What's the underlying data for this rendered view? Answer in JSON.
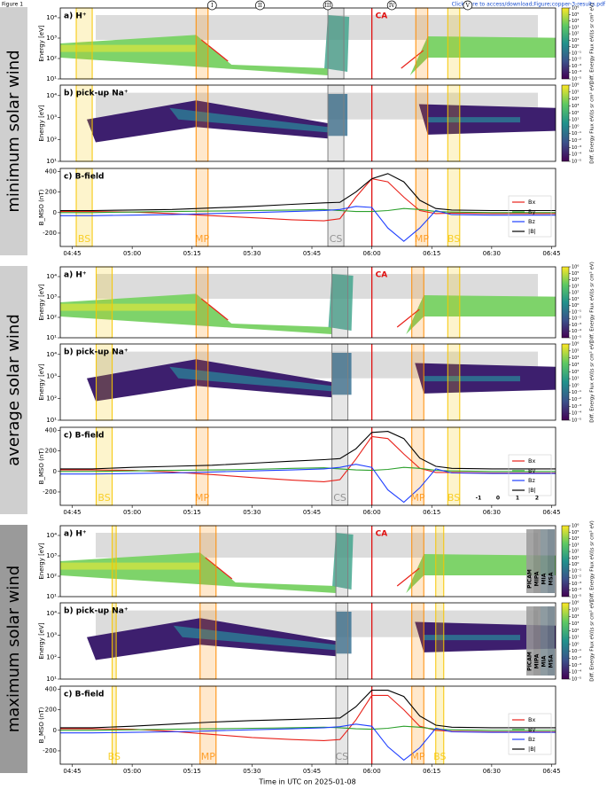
{
  "header": {
    "figure": "Figure 1",
    "link": "Click here to access/download;Figure;copper-3-results.pdf"
  },
  "time_axis": {
    "xlim": [
      "04:42",
      "06:46"
    ],
    "xticks": [
      "04:45",
      "05:00",
      "05:15",
      "05:30",
      "05:45",
      "06:00",
      "06:15",
      "06:30",
      "06:45"
    ],
    "label": "Time in UTC on 2025-01-08"
  },
  "roman": [
    {
      "time": "05:20",
      "label": "I"
    },
    {
      "time": "05:32",
      "label": "II"
    },
    {
      "time": "05:49",
      "label": "III"
    },
    {
      "time": "06:05",
      "label": "IV"
    },
    {
      "time": "06:24",
      "label": "V"
    }
  ],
  "energy_axis": {
    "ylabel": "Energy [eV]",
    "log": true,
    "ylim": [
      10,
      30000
    ],
    "yticks": [
      {
        "value": 10,
        "label": "10¹"
      },
      {
        "value": 100,
        "label": "10²"
      },
      {
        "value": 1000,
        "label": "10³"
      },
      {
        "value": 10000,
        "label": "10⁴"
      }
    ]
  },
  "colorbar": {
    "label": "Diff. Energy Flux eV/(s sr cm² eV)",
    "log": true,
    "lim": [
      1e-05,
      1000000
    ],
    "ticks": [
      {
        "value": 1000000,
        "label": "10⁶"
      },
      {
        "value": 100000,
        "label": "10⁵"
      },
      {
        "value": 10000,
        "label": "10⁴"
      },
      {
        "value": 1000,
        "label": "10³"
      },
      {
        "value": 100,
        "label": "10²"
      },
      {
        "value": 10,
        "label": "10¹"
      },
      {
        "value": 1,
        "label": "10⁰"
      },
      {
        "value": 0.1,
        "label": "10⁻¹"
      },
      {
        "value": 0.01,
        "label": "10⁻²"
      },
      {
        "value": 0.001,
        "label": "10⁻³"
      },
      {
        "value": 0.0001,
        "label": "10⁻⁴"
      },
      {
        "value": 1e-05,
        "label": "10⁻⁵"
      }
    ]
  },
  "bfield_axis": {
    "ylabel": "B_MSO (nT)",
    "ylim": [
      -330,
      430
    ],
    "yticks": [
      -200,
      0,
      200,
      400
    ],
    "x": [
      "04:42",
      "04:50",
      "05:00",
      "05:10",
      "05:20",
      "05:30",
      "05:40",
      "05:48",
      "05:52",
      "05:56",
      "06:00",
      "06:04",
      "06:08",
      "06:12",
      "06:16",
      "06:20",
      "06:30",
      "06:46"
    ]
  },
  "groups": [
    {
      "title": "minimum solar wind",
      "h_label": "a) H⁺",
      "na_label": "b) pick-up Na⁺",
      "b_label": "c) B-field",
      "ca": {
        "time": "06:00",
        "label": "CA"
      },
      "boundaries": [
        {
          "label": "BS",
          "start": "04:46",
          "end": "04:50",
          "color": "#f7c600"
        },
        {
          "label": "MP",
          "start": "05:16",
          "end": "05:19",
          "color": "#ff8c00"
        },
        {
          "label": "CS",
          "start": "05:49",
          "end": "05:53",
          "color": "#808080"
        },
        {
          "label": "MP",
          "start": "06:11",
          "end": "06:14",
          "color": "#ff8c00"
        },
        {
          "label": "BS",
          "start": "06:19",
          "end": "06:22",
          "color": "#f7c600"
        }
      ],
      "series": [
        {
          "name": "Bx",
          "color": "#e8211a",
          "values": [
            10,
            10,
            5,
            -10,
            -30,
            -50,
            -70,
            -80,
            -60,
            150,
            330,
            300,
            150,
            20,
            -10,
            -5,
            -10,
            -10
          ]
        },
        {
          "name": "By",
          "color": "#2ca02c",
          "values": [
            0,
            0,
            5,
            10,
            15,
            20,
            25,
            30,
            20,
            10,
            10,
            20,
            40,
            30,
            10,
            5,
            0,
            0
          ]
        },
        {
          "name": "Bz",
          "color": "#1f3fff",
          "values": [
            -30,
            -30,
            -25,
            -20,
            -10,
            0,
            10,
            20,
            30,
            60,
            50,
            -150,
            -280,
            -150,
            20,
            -20,
            -25,
            -25
          ]
        },
        {
          "name": "|B|",
          "color": "#000000",
          "values": [
            20,
            20,
            25,
            30,
            45,
            60,
            80,
            95,
            100,
            200,
            330,
            380,
            300,
            120,
            40,
            25,
            20,
            20
          ]
        }
      ]
    },
    {
      "title": "average solar wind",
      "h_label": "a) H⁺",
      "na_label": "b) pick-up Na⁺",
      "b_label": "c) B-field",
      "ca": {
        "time": "06:00",
        "label": "CA"
      },
      "boundaries": [
        {
          "label": "BS",
          "start": "04:51",
          "end": "04:55",
          "color": "#f7c600"
        },
        {
          "label": "MP",
          "start": "05:16",
          "end": "05:19",
          "color": "#ff8c00"
        },
        {
          "label": "CS",
          "start": "05:50",
          "end": "05:54",
          "color": "#808080"
        },
        {
          "label": "MP",
          "start": "06:10",
          "end": "06:13",
          "color": "#ff8c00"
        },
        {
          "label": "BS",
          "start": "06:19",
          "end": "06:22",
          "color": "#f7c600"
        }
      ],
      "extra_labels": [
        "-1",
        "0",
        "1",
        "2"
      ],
      "series": [
        {
          "name": "Bx",
          "color": "#e8211a",
          "values": [
            15,
            15,
            10,
            -5,
            -30,
            -60,
            -85,
            -100,
            -80,
            120,
            340,
            320,
            170,
            30,
            -10,
            -10,
            -15,
            -15
          ]
        },
        {
          "name": "By",
          "color": "#2ca02c",
          "values": [
            0,
            0,
            5,
            10,
            15,
            20,
            30,
            35,
            25,
            15,
            10,
            20,
            40,
            30,
            10,
            5,
            0,
            0
          ]
        },
        {
          "name": "Bz",
          "color": "#1f3fff",
          "values": [
            -25,
            -25,
            -20,
            -15,
            -5,
            5,
            15,
            25,
            40,
            70,
            40,
            -180,
            -300,
            -160,
            25,
            -15,
            -20,
            -20
          ]
        },
        {
          "name": "|B|",
          "color": "#000000",
          "values": [
            25,
            25,
            40,
            50,
            60,
            80,
            100,
            115,
            125,
            220,
            380,
            390,
            320,
            130,
            50,
            30,
            25,
            25
          ]
        }
      ]
    },
    {
      "title": "maximum solar wind",
      "h_label": "a) H⁺",
      "na_label": "b) pick-up Na⁺",
      "b_label": "c) B-field",
      "ca": {
        "time": "06:00",
        "label": "CA"
      },
      "boundaries": [
        {
          "label": "BS",
          "start": "04:55",
          "end": "04:56",
          "color": "#f7c600"
        },
        {
          "label": "MP",
          "start": "05:17",
          "end": "05:21",
          "color": "#ff8c00"
        },
        {
          "label": "CS",
          "start": "05:51",
          "end": "05:54",
          "color": "#808080"
        },
        {
          "label": "MP",
          "start": "06:10",
          "end": "06:13",
          "color": "#ff8c00"
        },
        {
          "label": "BS",
          "start": "06:16",
          "end": "06:18",
          "color": "#f7c600"
        }
      ],
      "instruments": [
        "PICAM",
        "MIPA",
        "MIA",
        "MSA"
      ],
      "series": [
        {
          "name": "Bx",
          "color": "#e8211a",
          "values": [
            15,
            15,
            10,
            -10,
            -40,
            -70,
            -90,
            -100,
            -90,
            100,
            340,
            340,
            200,
            40,
            0,
            -10,
            -15,
            -15
          ]
        },
        {
          "name": "By",
          "color": "#2ca02c",
          "values": [
            0,
            0,
            5,
            10,
            15,
            20,
            25,
            30,
            25,
            15,
            10,
            20,
            40,
            30,
            10,
            5,
            0,
            0
          ]
        },
        {
          "name": "Bz",
          "color": "#1f3fff",
          "values": [
            -25,
            -25,
            -20,
            -15,
            -5,
            5,
            15,
            25,
            35,
            60,
            40,
            -160,
            -290,
            -170,
            20,
            -15,
            -20,
            -20
          ]
        },
        {
          "name": "|B|",
          "color": "#000000",
          "values": [
            25,
            25,
            40,
            60,
            80,
            95,
            105,
            115,
            120,
            230,
            390,
            390,
            330,
            140,
            50,
            30,
            25,
            25
          ]
        }
      ]
    }
  ]
}
